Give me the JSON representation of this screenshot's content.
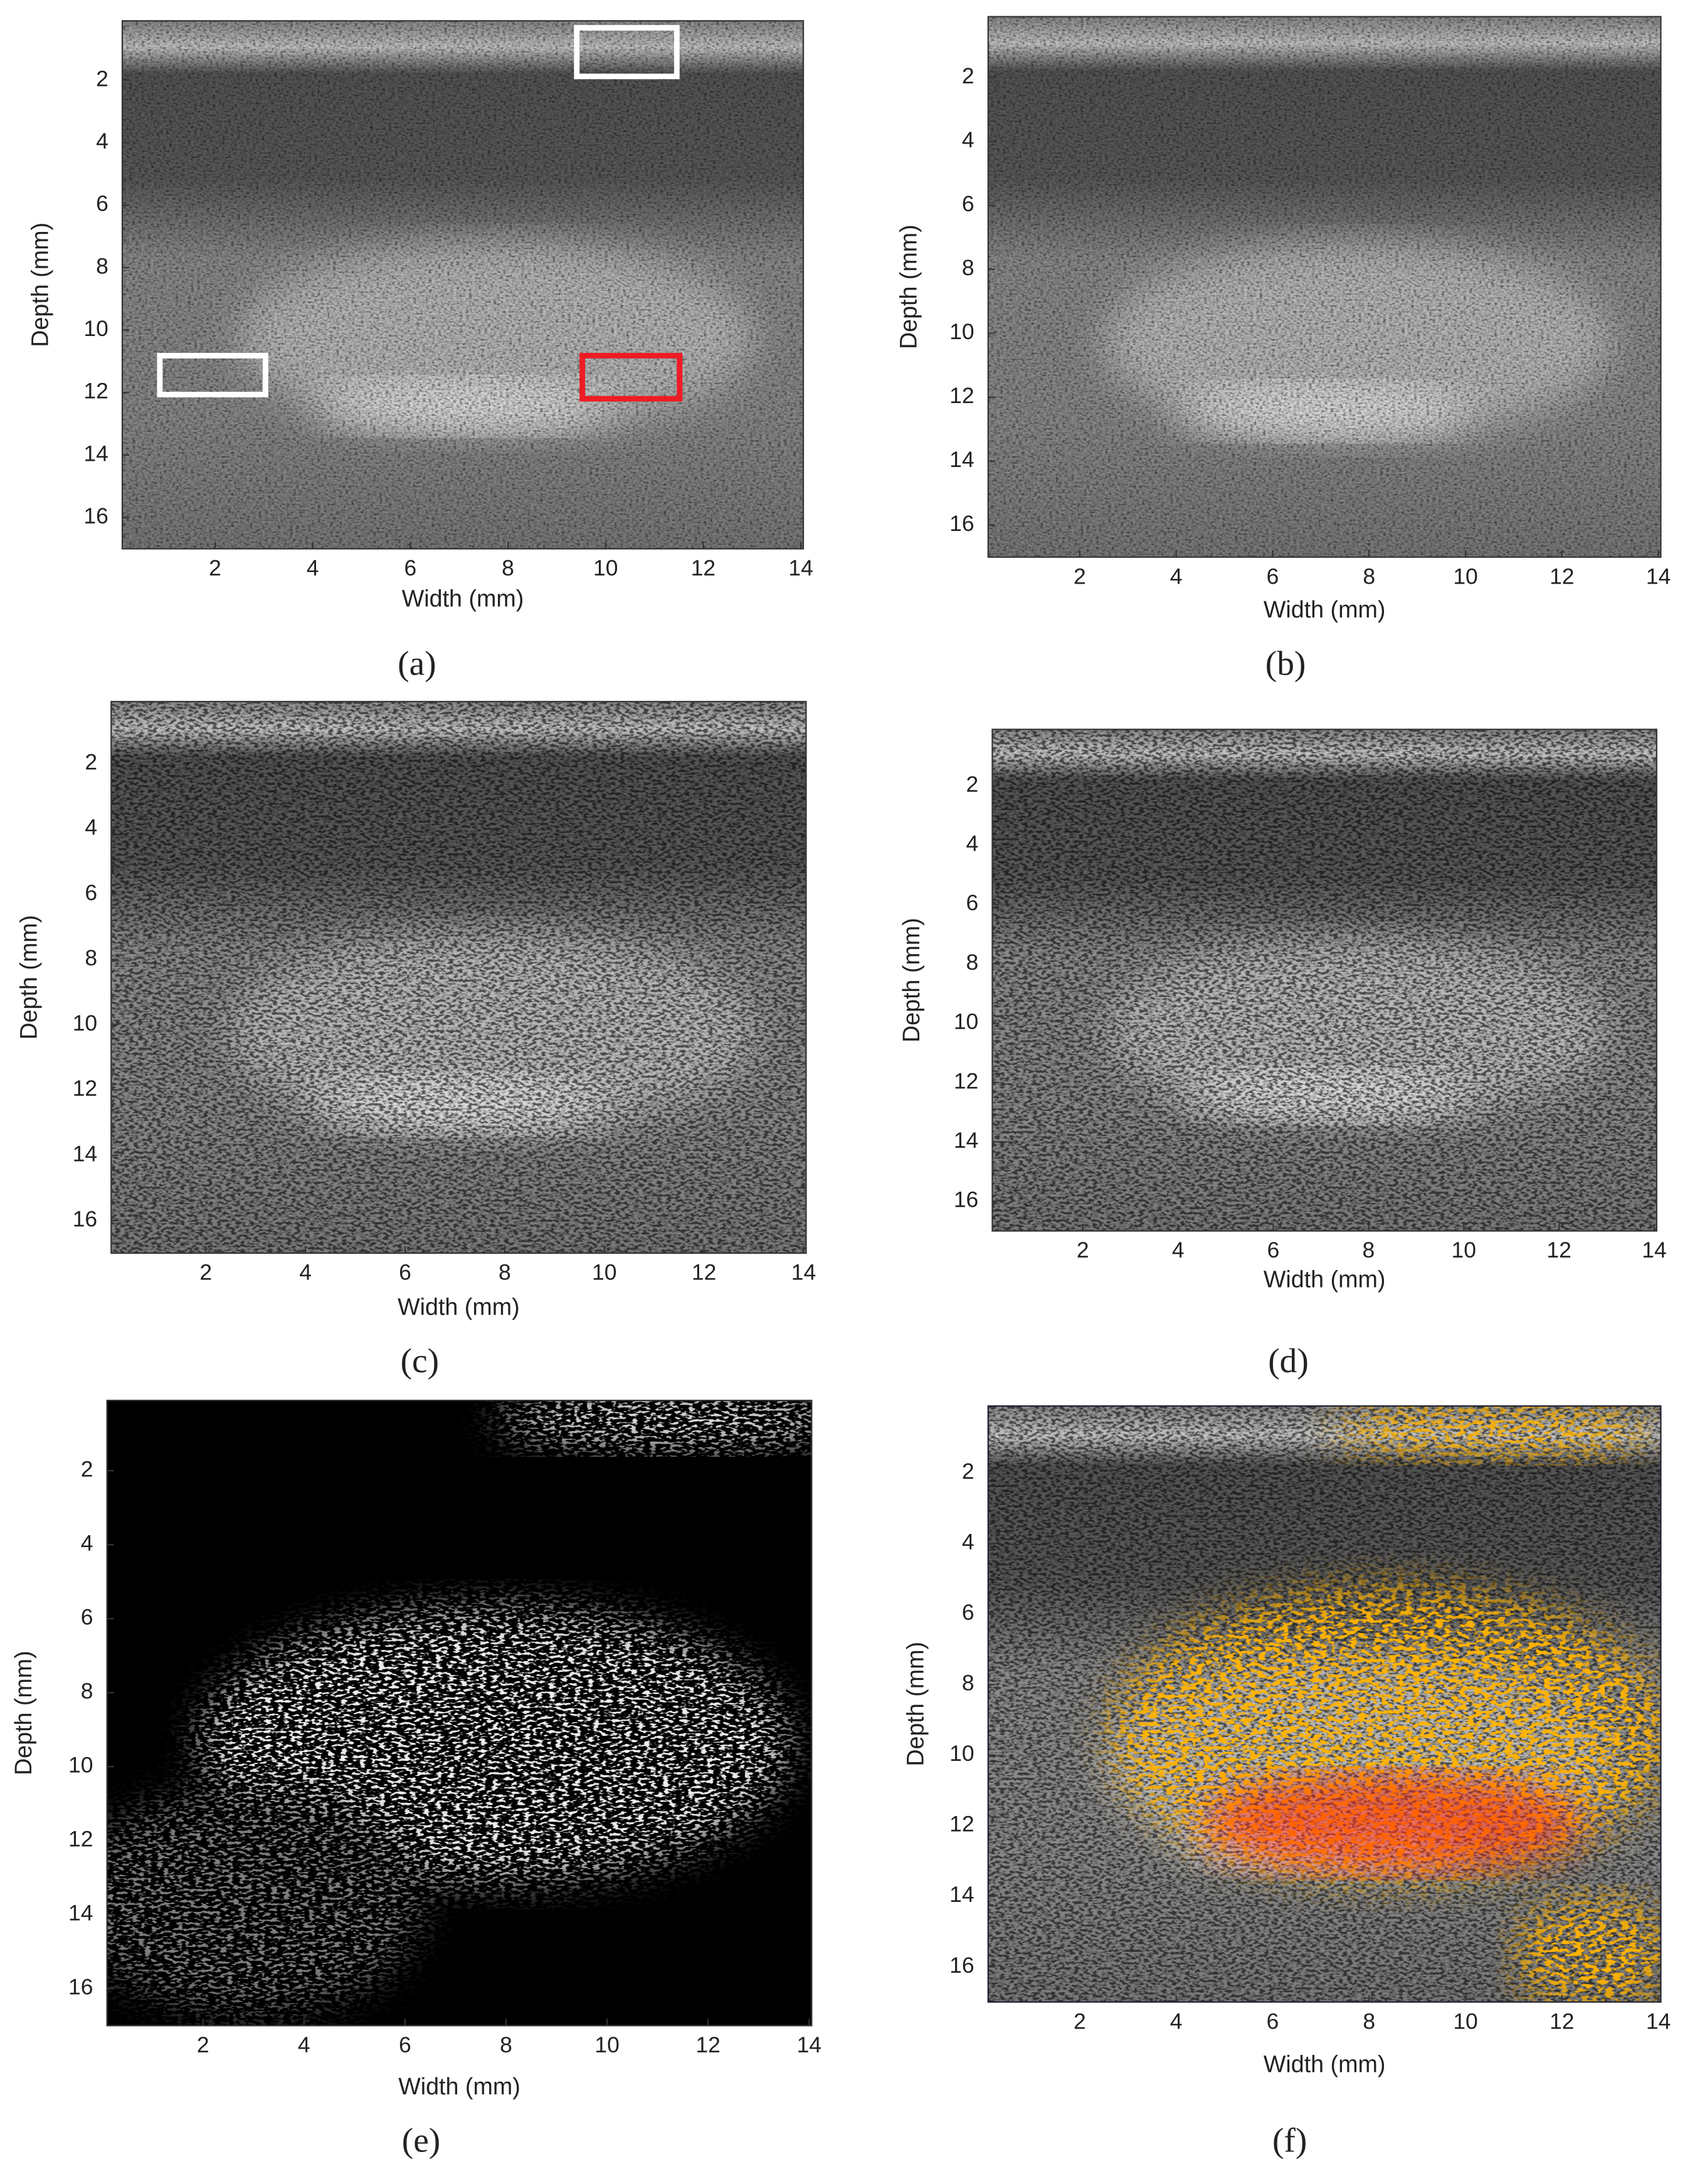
{
  "chart_data": [
    {
      "type": "image",
      "panel_label": "(a)",
      "xlabel": "Width (mm)",
      "ylabel": "Depth (mm)",
      "xlim": [
        0.1,
        14.05
      ],
      "ylim": [
        0.1,
        17
      ],
      "y_inverted": true,
      "xticks": [
        2,
        4,
        6,
        8,
        10,
        12,
        14
      ],
      "yticks": [
        2,
        4,
        6,
        8,
        10,
        12,
        14,
        16
      ]
    },
    {
      "type": "image",
      "panel_label": "(b)",
      "xlabel": "Width (mm)",
      "ylabel": "Depth (mm)",
      "xlim": [
        0.1,
        14.05
      ],
      "ylim": [
        0.1,
        17
      ],
      "y_inverted": true,
      "xticks": [
        2,
        4,
        6,
        8,
        10,
        12,
        14
      ],
      "yticks": [
        2,
        4,
        6,
        8,
        10,
        12,
        14,
        16
      ]
    },
    {
      "type": "image",
      "panel_label": "(c)",
      "xlabel": "Width (mm)",
      "ylabel": "Depth (mm)",
      "xlim": [
        0.1,
        14.05
      ],
      "ylim": [
        0.1,
        17
      ],
      "y_inverted": true,
      "xticks": [
        2,
        4,
        6,
        8,
        10,
        12,
        14
      ],
      "yticks": [
        2,
        4,
        6,
        8,
        10,
        12,
        14,
        16
      ]
    },
    {
      "type": "image",
      "panel_label": "(d)",
      "xlabel": "Width (mm)",
      "ylabel": "Depth (mm)",
      "xlim": [
        0.1,
        14.05
      ],
      "ylim": [
        0.1,
        17
      ],
      "y_inverted": true,
      "xticks": [
        2,
        4,
        6,
        8,
        10,
        12,
        14
      ],
      "yticks": [
        2,
        4,
        6,
        8,
        10,
        12,
        14,
        16
      ]
    },
    {
      "type": "image",
      "panel_label": "(e)",
      "xlabel": "Width (mm)",
      "ylabel": "Depth (mm)",
      "xlim": [
        0.1,
        14.05
      ],
      "ylim": [
        0.1,
        17
      ],
      "y_inverted": true,
      "xticks": [
        2,
        4,
        6,
        8,
        10,
        12,
        14
      ],
      "yticks": [
        2,
        4,
        6,
        8,
        10,
        12,
        14,
        16
      ]
    },
    {
      "type": "image",
      "panel_label": "(f)",
      "xlabel": "Width (mm)",
      "ylabel": "Depth (mm)",
      "xlim": [
        0.1,
        14.05
      ],
      "ylim": [
        0.1,
        17
      ],
      "y_inverted": true,
      "xticks": [
        2,
        4,
        6,
        8,
        10,
        12,
        14
      ],
      "yticks": [
        2,
        4,
        6,
        8,
        10,
        12,
        14,
        16
      ]
    }
  ]
}
